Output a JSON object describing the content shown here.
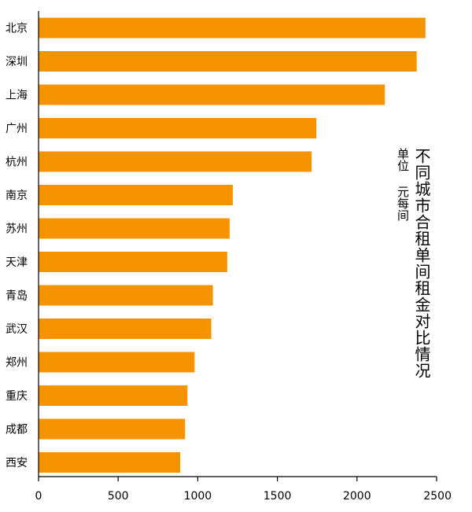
{
  "chart_data": {
    "type": "bar",
    "orientation": "horizontal",
    "title": "不同城市合租单间租金对比情况",
    "unit_label": "单位 元每间",
    "categories": [
      "北京",
      "深圳",
      "上海",
      "广州",
      "杭州",
      "南京",
      "苏州",
      "天津",
      "青岛",
      "武汉",
      "郑州",
      "重庆",
      "成都",
      "西安"
    ],
    "values": [
      2430,
      2375,
      2175,
      1745,
      1715,
      1220,
      1200,
      1185,
      1095,
      1085,
      980,
      935,
      920,
      890
    ],
    "xlim": [
      0,
      2500
    ],
    "xticks": [
      0,
      500,
      1000,
      1500,
      2000,
      2500
    ],
    "bar_color": "#F59300",
    "grid": false,
    "legend": "none"
  }
}
